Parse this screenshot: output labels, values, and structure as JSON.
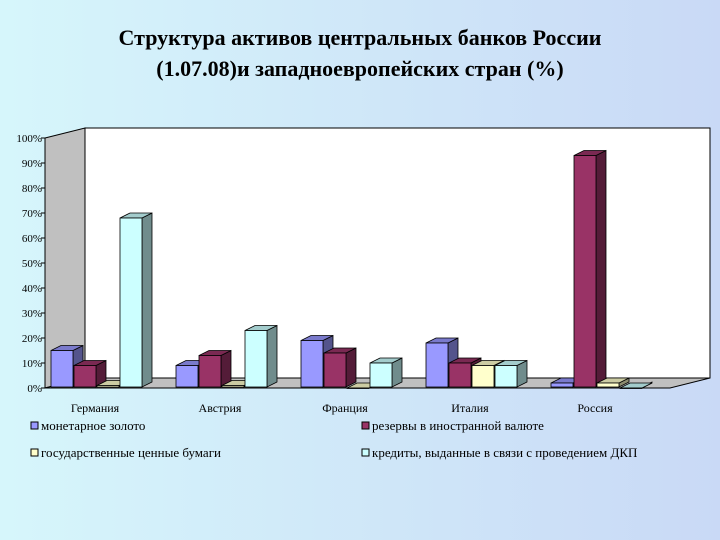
{
  "title": {
    "line1": "Структура активов центральных банков России",
    "line2": "(1.07.08)и западноевропейских стран (%)"
  },
  "chart_data": {
    "type": "bar",
    "three_d": true,
    "categories": [
      "Германия",
      "Австрия",
      "Франция",
      "Италия",
      "Россия"
    ],
    "series": [
      {
        "name": "монетарное золото",
        "color": "#9999ff",
        "values": [
          15,
          9,
          19,
          18,
          2
        ]
      },
      {
        "name": "резервы в иностранной валюте",
        "color": "#993366",
        "values": [
          9,
          13,
          14,
          10,
          93
        ]
      },
      {
        "name": "государственные ценные бумаги",
        "color": "#ffffcc",
        "values": [
          1,
          1,
          0,
          9,
          2
        ]
      },
      {
        "name": "кредиты, выданные в связи с проведением ДКП",
        "color": "#ccffff",
        "values": [
          68,
          23,
          10,
          9,
          0
        ]
      }
    ],
    "yticks": [
      "0%",
      "10%",
      "20%",
      "30%",
      "40%",
      "50%",
      "60%",
      "70%",
      "80%",
      "90%",
      "100%"
    ],
    "ylim": [
      0,
      100
    ],
    "grid": false,
    "legend_position": "bottom"
  }
}
